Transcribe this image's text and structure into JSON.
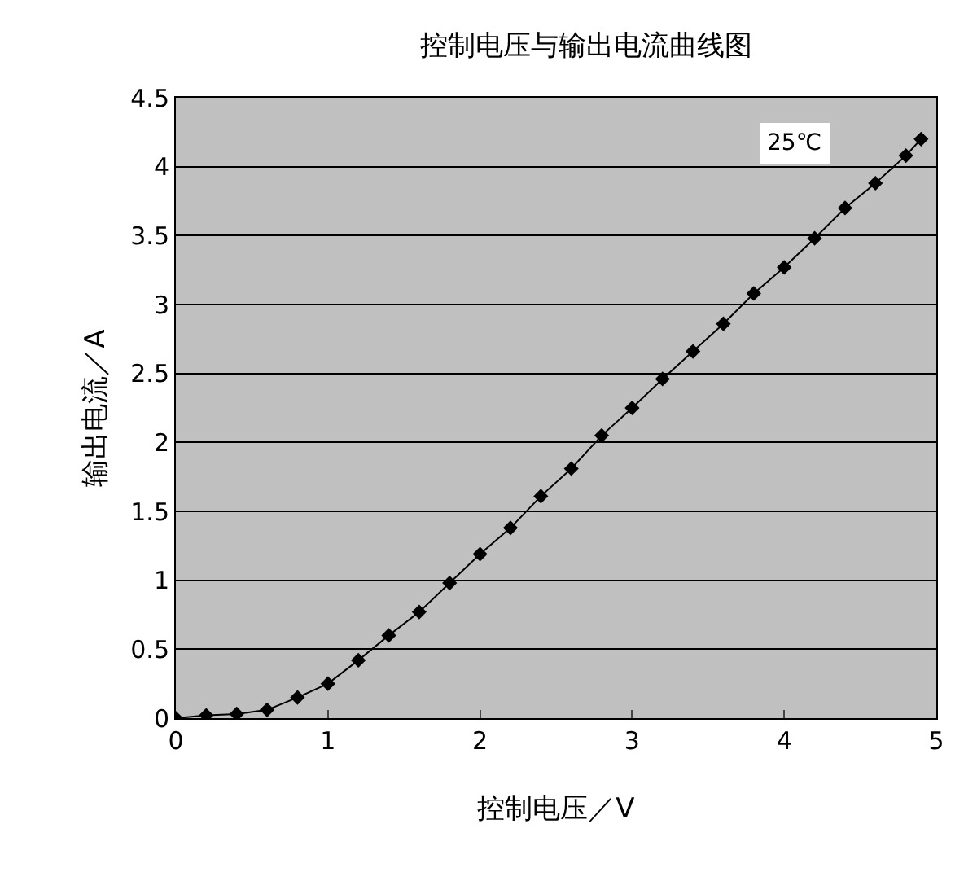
{
  "chart_data": {
    "type": "line",
    "title": "控制电压与输出电流曲线图",
    "xlabel": "控制电压／V",
    "ylabel": "输出电流／A",
    "x": [
      0,
      0.2,
      0.4,
      0.6,
      0.8,
      1.0,
      1.2,
      1.4,
      1.6,
      1.8,
      2.0,
      2.2,
      2.4,
      2.6,
      2.8,
      3.0,
      3.2,
      3.4,
      3.6,
      3.8,
      4.0,
      4.2,
      4.4,
      4.6,
      4.8,
      4.9
    ],
    "series": [
      {
        "color": "#000000",
        "values": [
          0,
          0.02,
          0.03,
          0.06,
          0.15,
          0.25,
          0.42,
          0.6,
          0.77,
          0.98,
          1.19,
          1.38,
          1.61,
          1.81,
          2.05,
          2.25,
          2.46,
          2.66,
          2.86,
          3.08,
          3.27,
          3.48,
          3.7,
          3.88,
          4.08,
          4.2
        ]
      }
    ],
    "xlim": [
      0,
      5
    ],
    "xticks": [
      0,
      1,
      2,
      3,
      4,
      5
    ],
    "ylim": [
      0,
      4.5
    ],
    "yticks": [
      0,
      0.5,
      1,
      1.5,
      2,
      2.5,
      3,
      3.5,
      4,
      4.5
    ],
    "annotations": [
      "25℃"
    ],
    "grid": "y",
    "marker": "diamond",
    "line_style": "solid"
  }
}
